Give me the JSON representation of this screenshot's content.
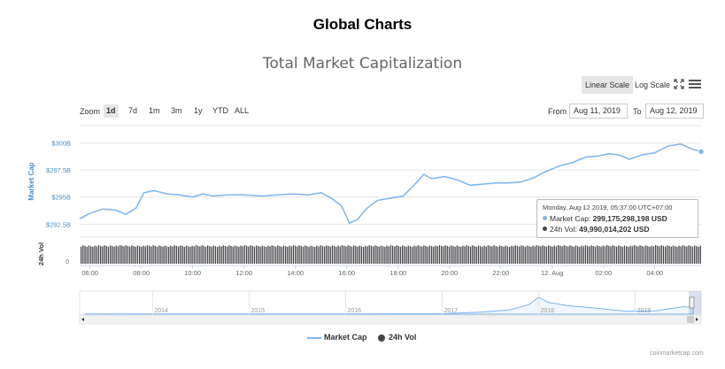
{
  "page": {
    "heading": "Global Charts"
  },
  "toolbar": {
    "linear_label": "Linear Scale",
    "log_label": "Log Scale",
    "zoom_label": "Zoom",
    "zoom_options": [
      "1d",
      "7d",
      "1m",
      "3m",
      "1y",
      "YTD",
      "ALL"
    ],
    "zoom_active": "1d",
    "from_label": "From",
    "from_value": "Aug 11, 2019",
    "to_label": "To",
    "to_value": "Aug 12, 2019",
    "fullscreen_icon": "fullscreen-icon",
    "menu_icon": "hamburger-menu-icon"
  },
  "tooltip": {
    "date": "Monday, Aug 12 2019, 05:37:00 UTC+07:00",
    "market_cap_label": "Market Cap:",
    "market_cap_value": "299,175,298,198 USD",
    "vol_label": "24h Vol:",
    "vol_value": "49,990,014,202 USD"
  },
  "legend": {
    "market_cap": "Market Cap",
    "vol": "24h Vol"
  },
  "credit": "coinmarketcap.com",
  "colors": {
    "market_cap": "#7cb5ec",
    "vol": "#434348",
    "axis_blue": "#4a90c8"
  },
  "chart_data": [
    {
      "type": "line",
      "title": "Total Market Capitalization",
      "ylabel": "Market Cap",
      "yticks": [
        "$292.5B",
        "$295B",
        "$297.5B",
        "$300B"
      ],
      "ylim": [
        291.3,
        301.6
      ],
      "xticks": [
        "06:00",
        "08:00",
        "10:00",
        "12:00",
        "14:00",
        "16:00",
        "18:00",
        "20:00",
        "22:00",
        "12. Aug",
        "02:00",
        "04:00"
      ],
      "xlim_hours": [
        5.6,
        29.8
      ],
      "grid": true,
      "series": [
        {
          "name": "Market Cap",
          "unit": "billion USD",
          "points": [
            [
              5.6,
              293.0
            ],
            [
              6.0,
              293.5
            ],
            [
              6.5,
              293.9
            ],
            [
              7.0,
              293.8
            ],
            [
              7.4,
              293.4
            ],
            [
              7.8,
              294.0
            ],
            [
              8.1,
              295.4
            ],
            [
              8.5,
              295.6
            ],
            [
              9.0,
              295.3
            ],
            [
              9.5,
              295.2
            ],
            [
              10.0,
              295.0
            ],
            [
              10.4,
              295.3
            ],
            [
              10.8,
              295.1
            ],
            [
              11.3,
              295.2
            ],
            [
              12.0,
              295.2
            ],
            [
              12.7,
              295.1
            ],
            [
              13.3,
              295.2
            ],
            [
              13.9,
              295.3
            ],
            [
              14.5,
              295.2
            ],
            [
              15.0,
              295.4
            ],
            [
              15.4,
              294.9
            ],
            [
              15.8,
              294.2
            ],
            [
              16.1,
              292.6
            ],
            [
              16.4,
              292.9
            ],
            [
              16.8,
              294.0
            ],
            [
              17.2,
              294.7
            ],
            [
              17.7,
              294.9
            ],
            [
              18.2,
              295.1
            ],
            [
              18.7,
              296.3
            ],
            [
              19.0,
              297.1
            ],
            [
              19.3,
              296.7
            ],
            [
              19.8,
              296.9
            ],
            [
              20.3,
              296.6
            ],
            [
              20.8,
              296.1
            ],
            [
              21.3,
              296.2
            ],
            [
              21.8,
              296.3
            ],
            [
              22.3,
              296.3
            ],
            [
              22.8,
              296.4
            ],
            [
              23.3,
              296.8
            ],
            [
              23.7,
              297.3
            ],
            [
              24.3,
              297.9
            ],
            [
              24.8,
              298.2
            ],
            [
              25.3,
              298.7
            ],
            [
              25.8,
              298.8
            ],
            [
              26.2,
              299.0
            ],
            [
              26.6,
              298.9
            ],
            [
              27.0,
              298.5
            ],
            [
              27.5,
              298.9
            ],
            [
              28.0,
              299.1
            ],
            [
              28.5,
              299.7
            ],
            [
              29.0,
              299.9
            ],
            [
              29.5,
              299.4
            ],
            [
              29.8,
              299.2
            ]
          ]
        },
        {
          "name": "24h Vol",
          "unit": "USD"
        }
      ]
    },
    {
      "type": "area",
      "note_role": "navigator",
      "xticks": [
        "2014",
        "2015",
        "2016",
        "2017",
        "2018",
        "2019"
      ],
      "series": [
        {
          "name": "Market Cap",
          "points": [
            [
              2013.3,
              0.005
            ],
            [
              2014.0,
              0.01
            ],
            [
              2015.0,
              0.01
            ],
            [
              2016.0,
              0.01
            ],
            [
              2017.0,
              0.02
            ],
            [
              2017.4,
              0.09
            ],
            [
              2017.7,
              0.2
            ],
            [
              2017.9,
              0.45
            ],
            [
              2018.0,
              0.8
            ],
            [
              2018.1,
              0.55
            ],
            [
              2018.3,
              0.4
            ],
            [
              2018.6,
              0.28
            ],
            [
              2018.9,
              0.14
            ],
            [
              2019.2,
              0.15
            ],
            [
              2019.5,
              0.35
            ],
            [
              2019.6,
              0.32
            ]
          ]
        }
      ]
    }
  ]
}
